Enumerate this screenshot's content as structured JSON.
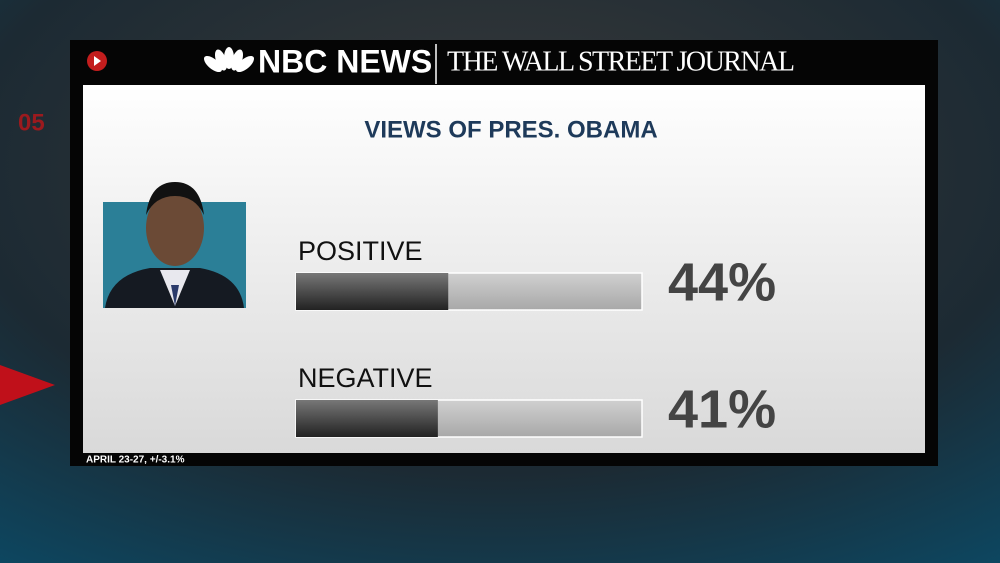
{
  "network": "NBC NEWS",
  "partner": "THE WALL STREET JOURNAL",
  "background_text": "05",
  "chart_data": {
    "type": "hbar",
    "title": "VIEWS OF PRES. OBAMA",
    "categories": [
      "POSITIVE",
      "NEGATIVE"
    ],
    "values": [
      44,
      41
    ],
    "value_labels": [
      "44%",
      "41%"
    ],
    "color": "#3a3a3a",
    "xlim": [
      0,
      100
    ],
    "note": "APRIL 23-27, +/-3.1%"
  }
}
